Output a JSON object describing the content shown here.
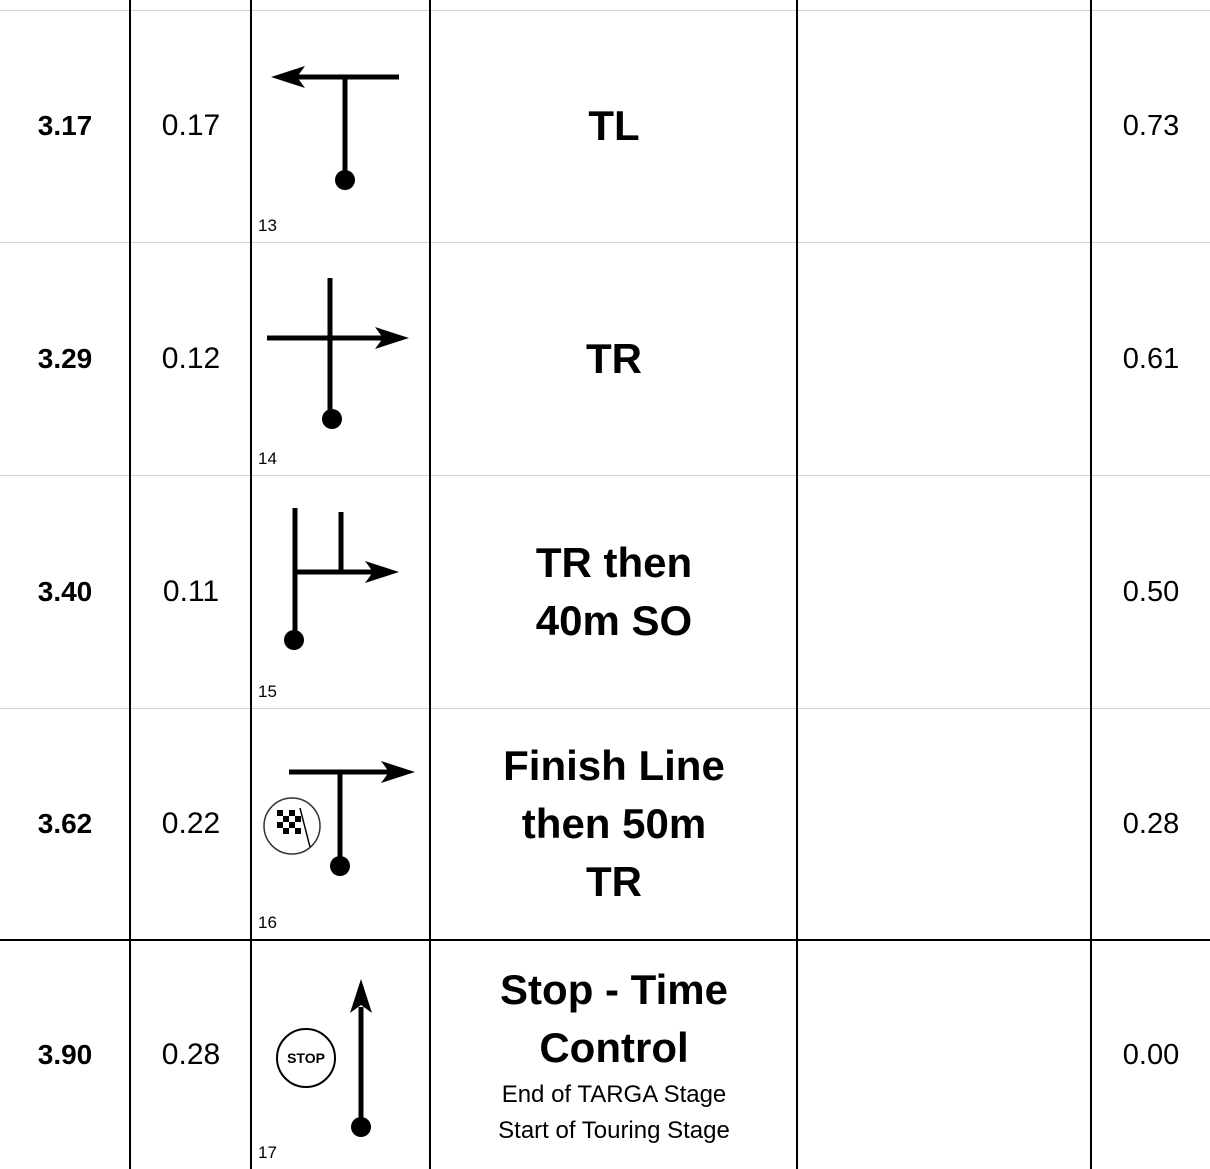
{
  "rows": [
    {
      "total": "3.17",
      "partial": "0.17",
      "waypoint": "13",
      "instruction": "TL",
      "sub": "",
      "remaining": "0.73",
      "diagram": "tl-icon"
    },
    {
      "total": "3.29",
      "partial": "0.12",
      "waypoint": "14",
      "instruction": "TR",
      "sub": "",
      "remaining": "0.61",
      "diagram": "crossroad-right-icon"
    },
    {
      "total": "3.40",
      "partial": "0.11",
      "waypoint": "15",
      "instruction": "TR then\n40m SO",
      "sub": "",
      "remaining": "0.50",
      "diagram": "right-then-straight-icon"
    },
    {
      "total": "3.62",
      "partial": "0.22",
      "waypoint": "16",
      "instruction": "Finish Line\nthen 50m\nTR",
      "sub": "",
      "remaining": "0.28",
      "diagram": "finish-then-right-icon"
    },
    {
      "total": "3.90",
      "partial": "0.28",
      "waypoint": "17",
      "instruction": "Stop - Time\nControl",
      "sub": "End of TARGA Stage\nStart of Touring Stage",
      "remaining": "0.00",
      "diagram": "stop-straight-icon"
    }
  ],
  "stop_sign_text": "STOP"
}
